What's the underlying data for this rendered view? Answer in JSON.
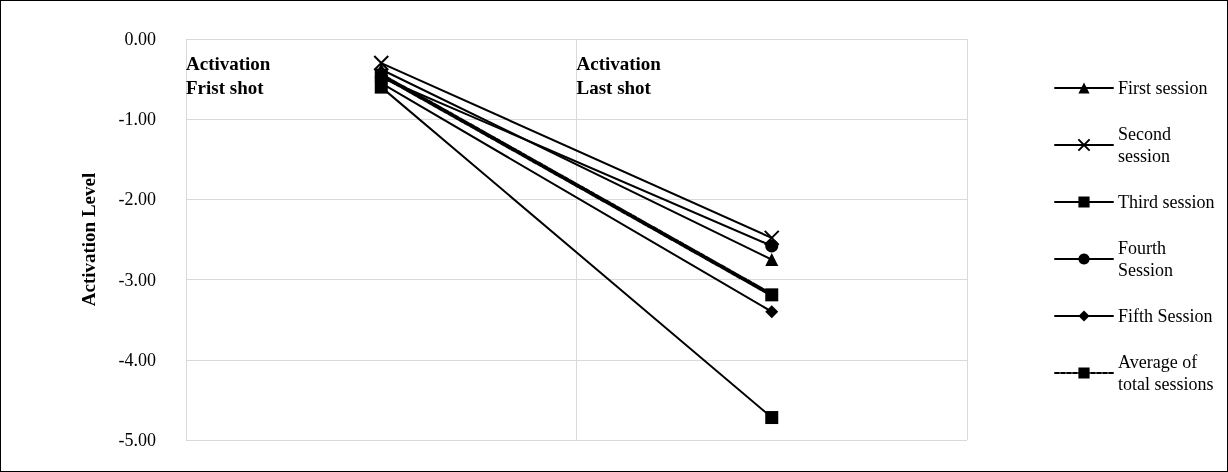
{
  "chart_data": {
    "type": "line",
    "ylabel": "Activation Level",
    "categories": [
      "Activation\nFrist shot",
      "Activation\nLast shot"
    ],
    "series": [
      {
        "name": "First session",
        "color": "#000000",
        "marker": "triangle",
        "line_style": "solid",
        "values": [
          -0.38,
          -2.75
        ]
      },
      {
        "name": "Second session",
        "color": "#000000",
        "marker": "cross",
        "line_style": "solid",
        "values": [
          -0.3,
          -2.48
        ]
      },
      {
        "name": "Third session",
        "color": "#000000",
        "marker": "square",
        "line_style": "solid",
        "values": [
          -0.6,
          -4.72
        ]
      },
      {
        "name": "Fourth Session",
        "color": "#000000",
        "marker": "circle",
        "line_style": "solid",
        "values": [
          -0.48,
          -2.58
        ]
      },
      {
        "name": "Fifth Session",
        "color": "#000000",
        "marker": "diamond",
        "line_style": "solid",
        "values": [
          -0.55,
          -3.4
        ]
      },
      {
        "name": "Average of total sessions",
        "color": "#000000",
        "marker": "square",
        "line_style": "dashed",
        "values": [
          -0.45,
          -3.19
        ]
      }
    ],
    "ylim": [
      -5,
      0
    ],
    "yticks": [
      {
        "value": -5,
        "label": "-5.00"
      },
      {
        "value": -4,
        "label": "-4.00"
      },
      {
        "value": -3,
        "label": "-3.00"
      },
      {
        "value": -2,
        "label": "-2.00"
      },
      {
        "value": -1,
        "label": "-1.00"
      },
      {
        "value": 0,
        "label": "0.00"
      }
    ],
    "grid": true,
    "legend": "right"
  }
}
